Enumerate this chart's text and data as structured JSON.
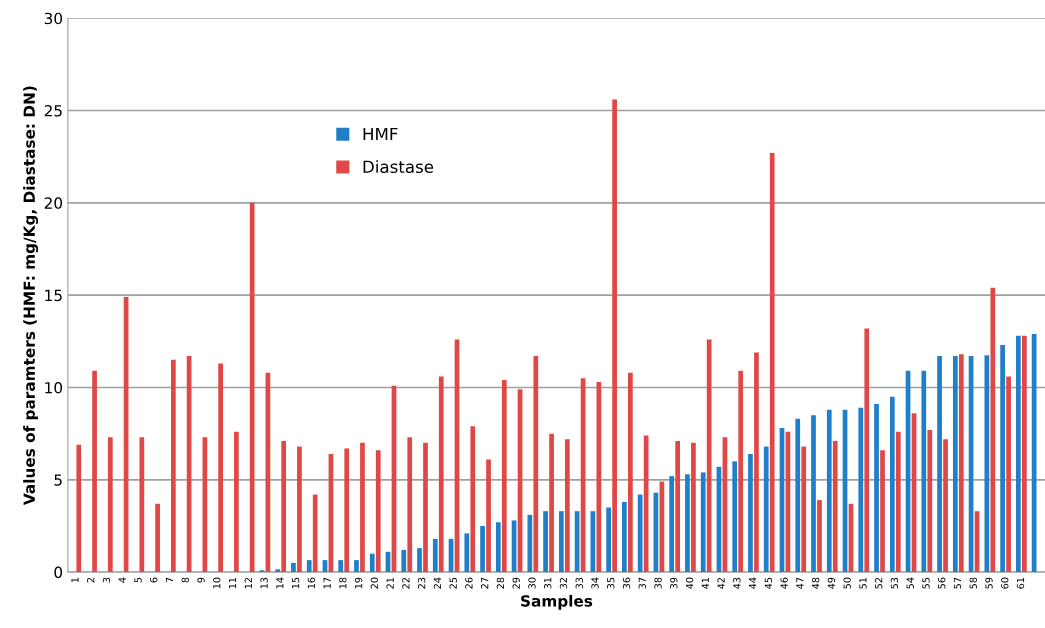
{
  "chart_data": {
    "type": "bar",
    "xlabel": "Samples",
    "ylabel": "Values of paramters (HMF: mg/Kg, Diastase: DN)",
    "categories": [
      "1",
      "2",
      "3",
      "4",
      "5",
      "6",
      "7",
      "8",
      "9",
      "10",
      "11",
      "12",
      "13",
      "14",
      "15",
      "16",
      "17",
      "18",
      "19",
      "20",
      "21",
      "22",
      "23",
      "24",
      "25",
      "26",
      "27",
      "28",
      "29",
      "30",
      "31",
      "32",
      "33",
      "34",
      "35",
      "36",
      "37",
      "38",
      "39",
      "40",
      "41",
      "42",
      "43",
      "44",
      "45",
      "46",
      "47",
      "48",
      "49",
      "50",
      "51",
      "52",
      "53",
      "54",
      "55",
      "56",
      "57",
      "58",
      "59",
      "60",
      "61",
      null
    ],
    "series": [
      {
        "name": "HMF",
        "color": "#1f7fc8",
        "values": [
          0,
          0,
          0,
          0,
          0,
          0,
          0,
          0,
          0,
          0,
          0,
          0,
          0.1,
          0.15,
          0.5,
          0.65,
          0.65,
          0.65,
          0.65,
          1.0,
          1.1,
          1.2,
          1.3,
          1.8,
          1.8,
          2.1,
          2.5,
          2.7,
          2.8,
          3.1,
          3.3,
          3.3,
          3.3,
          3.3,
          3.5,
          3.8,
          4.2,
          4.3,
          5.2,
          5.3,
          5.4,
          5.7,
          6.0,
          6.4,
          6.8,
          7.8,
          8.3,
          8.5,
          8.8,
          8.8,
          8.9,
          9.1,
          9.5,
          10.9,
          10.9,
          11.7,
          11.7,
          11.7,
          11.75,
          12.3,
          12.8,
          12.9
        ]
      },
      {
        "name": "Diastase",
        "color": "#e04848",
        "values": [
          6.9,
          10.9,
          7.3,
          14.9,
          7.3,
          3.7,
          11.5,
          11.7,
          7.3,
          11.3,
          7.6,
          20,
          10.8,
          7.1,
          6.8,
          4.2,
          6.4,
          6.7,
          7.0,
          6.6,
          10.1,
          7.3,
          7.0,
          10.6,
          12.6,
          7.9,
          6.1,
          10.4,
          9.9,
          11.7,
          7.5,
          7.2,
          10.5,
          10.3,
          25.6,
          10.8,
          7.4,
          4.9,
          7.1,
          7.0,
          12.6,
          7.3,
          10.9,
          11.9,
          22.7,
          7.6,
          6.8,
          3.9,
          7.1,
          3.7,
          13.2,
          6.6,
          7.6,
          8.6,
          7.7,
          7.2,
          11.8,
          3.3,
          15.4,
          10.6,
          12.8,
          null
        ]
      }
    ],
    "ylim": [
      0,
      30
    ],
    "yticks": [
      0,
      5,
      10,
      15,
      20,
      25,
      30
    ],
    "grid": "y",
    "legend": "top left"
  }
}
